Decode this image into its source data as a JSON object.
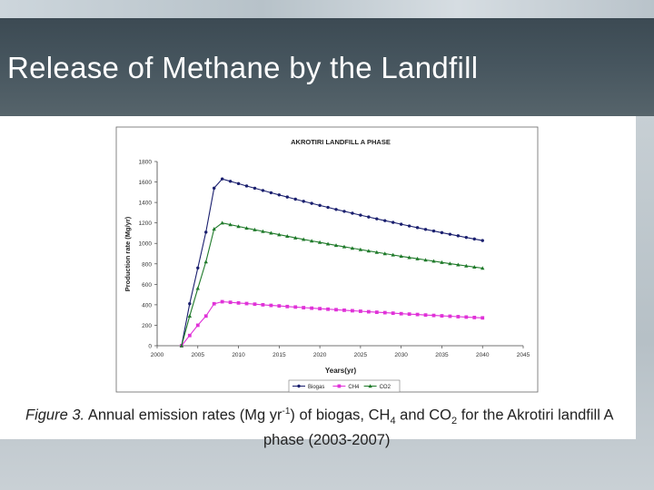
{
  "slide": {
    "title": "Release of Methane by the Landfill"
  },
  "caption": {
    "figure_label": "Figure 3.",
    "text_part1": "Annual emission rates (Mg yr",
    "sup": "-1",
    "text_part2": ") of biogas, CH",
    "sub4": "4",
    "text_part3": " and CO",
    "sub2": "2",
    "text_part4": " for the Akrotiri landfill A",
    "line2": "phase (2003-2007)"
  },
  "chart_data": {
    "type": "line",
    "title": "AKROTIRI LANDFILL A PHASE",
    "xlabel": "Years(yr)",
    "ylabel": "Production rate (Mg/yr)",
    "xlim": [
      2000,
      2045
    ],
    "ylim": [
      0,
      1800
    ],
    "xticks": [
      2000,
      2005,
      2010,
      2015,
      2020,
      2025,
      2030,
      2035,
      2040,
      2045
    ],
    "yticks": [
      0,
      200,
      400,
      600,
      800,
      1000,
      1200,
      1400,
      1600,
      1800
    ],
    "legend_position": "bottom",
    "x": [
      2003,
      2004,
      2005,
      2006,
      2007,
      2008,
      2009,
      2010,
      2011,
      2012,
      2013,
      2014,
      2015,
      2016,
      2017,
      2018,
      2019,
      2020,
      2021,
      2022,
      2023,
      2024,
      2025,
      2026,
      2027,
      2028,
      2029,
      2030,
      2031,
      2032,
      2033,
      2034,
      2035,
      2036,
      2037,
      2038,
      2039,
      2040
    ],
    "series": [
      {
        "name": "Biogas",
        "color": "#1a1f6e",
        "marker": "circle",
        "values": [
          0,
          410,
          760,
          1110,
          1540,
          1630,
          1607,
          1584,
          1561,
          1539,
          1517,
          1495,
          1474,
          1453,
          1432,
          1411,
          1391,
          1371,
          1352,
          1332,
          1313,
          1295,
          1276,
          1258,
          1240,
          1222,
          1205,
          1187,
          1170,
          1154,
          1137,
          1121,
          1105,
          1089,
          1074,
          1058,
          1043,
          1028
        ]
      },
      {
        "name": "CH4",
        "color": "#e032d8",
        "marker": "square",
        "values": [
          0,
          100,
          200,
          290,
          410,
          430,
          424,
          418,
          412,
          406,
          400,
          394,
          389,
          383,
          378,
          372,
          367,
          362,
          357,
          352,
          347,
          342,
          337,
          332,
          327,
          323,
          318,
          313,
          309,
          305,
          300,
          296,
          292,
          288,
          284,
          280,
          276,
          272
        ]
      },
      {
        "name": "CO2",
        "color": "#1f7a2a",
        "marker": "triangle",
        "values": [
          0,
          290,
          560,
          820,
          1140,
          1200,
          1183,
          1166,
          1149,
          1133,
          1117,
          1101,
          1085,
          1070,
          1054,
          1039,
          1024,
          1010,
          995,
          981,
          967,
          953,
          940,
          926,
          913,
          900,
          887,
          874,
          862,
          850,
          838,
          826,
          814,
          802,
          791,
          780,
          769,
          758
        ]
      }
    ]
  }
}
